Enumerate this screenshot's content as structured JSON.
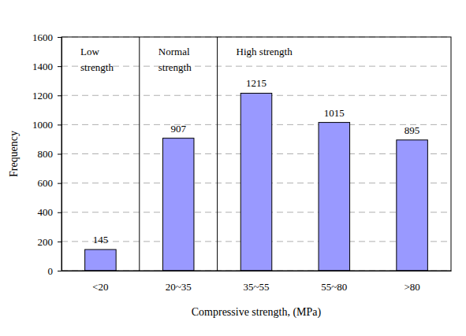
{
  "chart_data": {
    "type": "bar",
    "x_label": "Compressive strength, (MPa)",
    "y_label": "Frequency",
    "categories": [
      "<20",
      "20~35",
      "35~55",
      "55~80",
      ">80"
    ],
    "values": [
      145,
      907,
      1215,
      1015,
      895
    ],
    "color": "#9999ff",
    "ylim": [
      0,
      1600
    ],
    "yticks": [
      0,
      200,
      400,
      600,
      800,
      1000,
      1200,
      1400,
      1600
    ],
    "grid": true,
    "data_labels": true,
    "annotations": [
      {
        "text": "Low strength",
        "span": [
          0,
          0
        ]
      },
      {
        "text": "Normal strength",
        "span": [
          1,
          1
        ]
      },
      {
        "text": "High strength",
        "span": [
          2,
          4
        ]
      }
    ]
  }
}
